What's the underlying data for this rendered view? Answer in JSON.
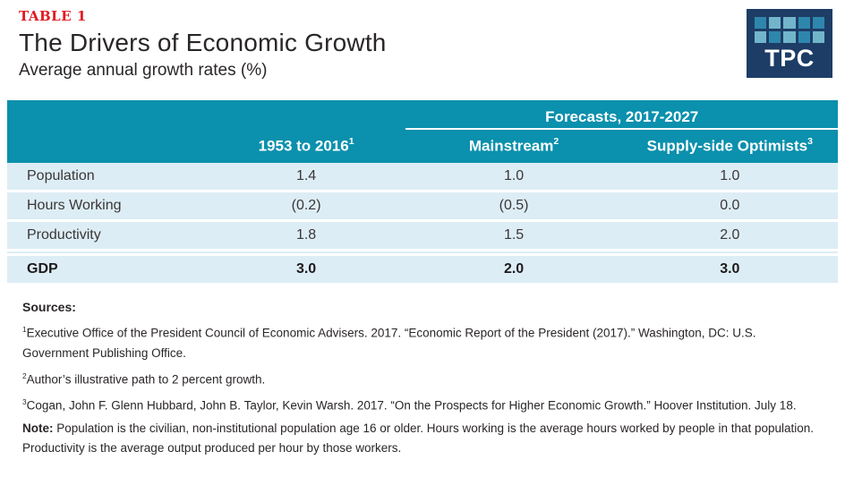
{
  "header": {
    "table_label": "TABLE 1",
    "title": "The Drivers of Economic Growth",
    "subtitle": "Average annual growth rates (%)"
  },
  "logo": {
    "text": "TPC",
    "background": "#1d3d66",
    "squares": [
      "#2f86ad",
      "#72b5cb",
      "#72b5cb",
      "#2f86ad",
      "#2f86ad",
      "#72b5cb",
      "#2f86ad",
      "#72b5cb",
      "#2f86ad",
      "#72b5cb"
    ]
  },
  "colors": {
    "header_teal": "#0b90ad",
    "row_blue": "#ddedf5",
    "label_red": "#e11b22"
  },
  "table": {
    "group_header": "Forecasts, 2017-2027",
    "columns": [
      {
        "label": "1953 to 2016",
        "sup": "1"
      },
      {
        "label": "Mainstream",
        "sup": "2"
      },
      {
        "label": "Supply-side Optimists",
        "sup": "3"
      }
    ],
    "rows": [
      {
        "label": "Population",
        "historical": "1.4",
        "mainstream": "1.0",
        "supply_side": "1.0"
      },
      {
        "label": "Hours Working",
        "historical": "(0.2)",
        "mainstream": "(0.5)",
        "supply_side": "0.0"
      },
      {
        "label": "Productivity",
        "historical": "1.8",
        "mainstream": "1.5",
        "supply_side": "2.0"
      },
      {
        "label": "GDP",
        "historical": "3.0",
        "mainstream": "2.0",
        "supply_side": "3.0"
      }
    ]
  },
  "chart_data": {
    "type": "table",
    "title": "The Drivers of Economic Growth",
    "subtitle": "Average annual growth rates (%)",
    "column_headers": [
      "",
      "1953 to 2016",
      "Mainstream",
      "Supply-side Optimists"
    ],
    "group_header": "Forecasts, 2017-2027",
    "rows": [
      [
        "Population",
        "1.4",
        "1.0",
        "1.0"
      ],
      [
        "Hours Working",
        "(0.2)",
        "(0.5)",
        "0.0"
      ],
      [
        "Productivity",
        "1.8",
        "1.5",
        "2.0"
      ],
      [
        "GDP",
        "3.0",
        "2.0",
        "3.0"
      ]
    ]
  },
  "footer": {
    "sources_label": "Sources:",
    "footnotes": [
      {
        "marker": "1",
        "text": "Executive Office of the President Council of Economic Advisers. 2017. “Economic Report of the President (2017).” Washington, DC: U.S. Government Publishing Office."
      },
      {
        "marker": "2",
        "text": "Author’s illustrative path to 2 percent growth."
      },
      {
        "marker": "3",
        "text": "Cogan, John F. Glenn Hubbard, John B. Taylor, Kevin Warsh. 2017. “On the Prospects for Higher Economic Growth.” Hoover Institution. July 18."
      }
    ],
    "note_label": "Note:",
    "note_text": "Population is the civilian, non-institutional population age 16 or older. Hours working is the average hours worked by people in that population. Productivity is the average output produced per hour by those workers."
  }
}
